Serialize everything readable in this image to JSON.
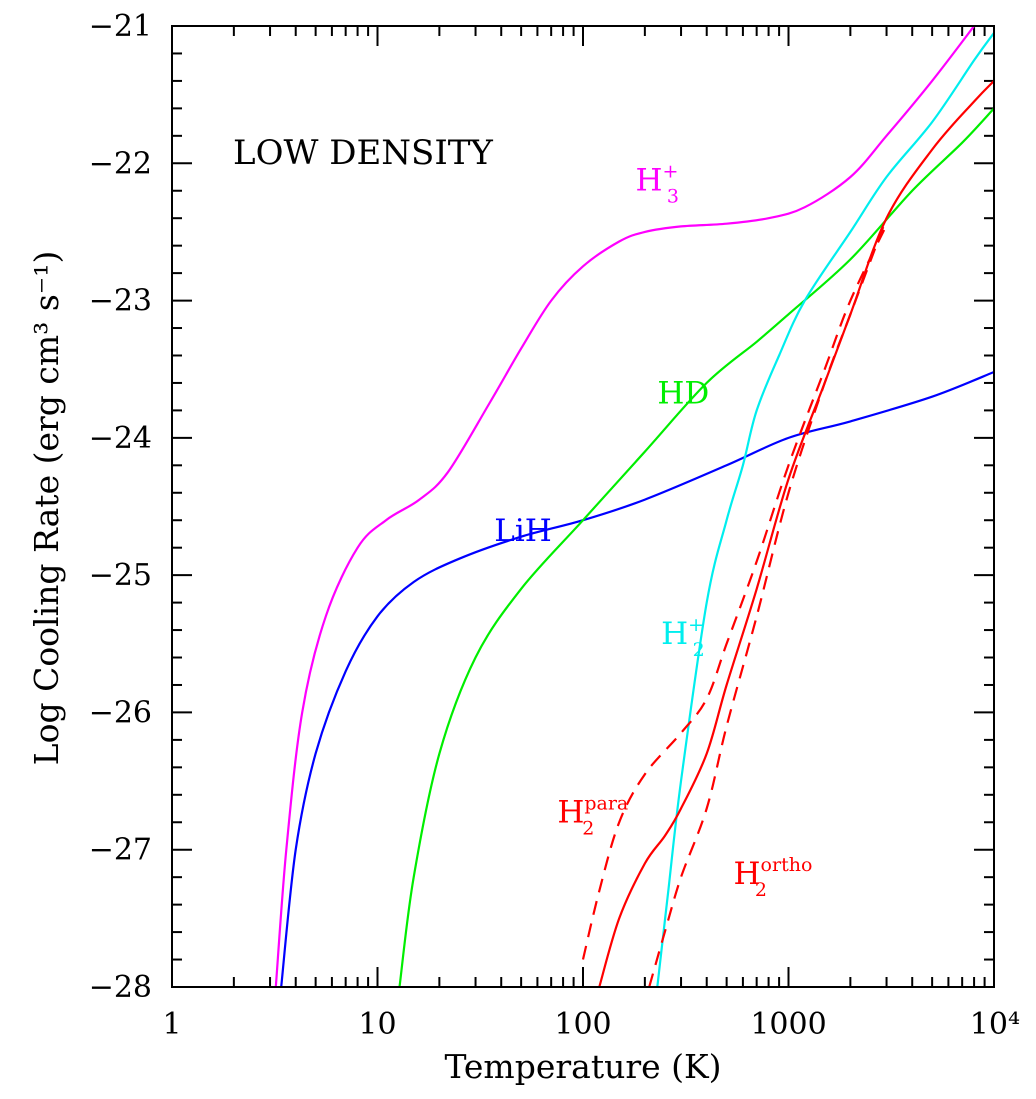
{
  "chart_data": {
    "type": "line",
    "title": "",
    "annotation": "LOW DENSITY",
    "xlabel": "Temperature (K)",
    "ylabel": "Log Cooling Rate (erg cm³ s⁻¹)",
    "xscale": "log",
    "xlim": [
      1,
      10000
    ],
    "ylim": [
      -28,
      -21
    ],
    "x_tick_labels": [
      {
        "value": 1,
        "label": "1"
      },
      {
        "value": 10,
        "label": "10"
      },
      {
        "value": 100,
        "label": "100"
      },
      {
        "value": 1000,
        "label": "1000"
      },
      {
        "value": 10000,
        "label": "10⁴"
      }
    ],
    "y_tick_labels": [
      {
        "value": -21,
        "label": "−21"
      },
      {
        "value": -22,
        "label": "−22"
      },
      {
        "value": -23,
        "label": "−23"
      },
      {
        "value": -24,
        "label": "−24"
      },
      {
        "value": -25,
        "label": "−25"
      },
      {
        "value": -26,
        "label": "−26"
      },
      {
        "value": -27,
        "label": "−27"
      },
      {
        "value": -28,
        "label": "−28"
      }
    ],
    "series": [
      {
        "name": "H3+",
        "label": {
          "base": "H",
          "sup": "+",
          "sub": "3"
        },
        "color": "#ff00ff",
        "dash": "solid",
        "label_anchor": {
          "x": 180,
          "y": -22.2
        },
        "points": [
          [
            3.2,
            -28.0
          ],
          [
            3.6,
            -27.0
          ],
          [
            4.3,
            -26.0
          ],
          [
            5.6,
            -25.3
          ],
          [
            8.0,
            -24.8
          ],
          [
            11,
            -24.6
          ],
          [
            16,
            -24.45
          ],
          [
            22,
            -24.25
          ],
          [
            35,
            -23.75
          ],
          [
            50,
            -23.35
          ],
          [
            70,
            -23.0
          ],
          [
            100,
            -22.75
          ],
          [
            150,
            -22.57
          ],
          [
            200,
            -22.5
          ],
          [
            300,
            -22.46
          ],
          [
            500,
            -22.44
          ],
          [
            800,
            -22.4
          ],
          [
            1200,
            -22.32
          ],
          [
            2000,
            -22.1
          ],
          [
            3000,
            -21.8
          ],
          [
            5000,
            -21.4
          ],
          [
            8000,
            -21.0
          ]
        ]
      },
      {
        "name": "LiH",
        "label": {
          "base": "LiH",
          "sup": "",
          "sub": ""
        },
        "color": "#0000ff",
        "dash": "solid",
        "label_anchor": {
          "x": 37,
          "y": -24.75
        },
        "points": [
          [
            3.4,
            -28.0
          ],
          [
            4.0,
            -27.0
          ],
          [
            5.0,
            -26.3
          ],
          [
            7.0,
            -25.7
          ],
          [
            10,
            -25.3
          ],
          [
            15,
            -25.05
          ],
          [
            25,
            -24.88
          ],
          [
            50,
            -24.72
          ],
          [
            100,
            -24.6
          ],
          [
            200,
            -24.45
          ],
          [
            500,
            -24.2
          ],
          [
            1000,
            -24.0
          ],
          [
            2000,
            -23.88
          ],
          [
            5000,
            -23.7
          ],
          [
            10000,
            -23.52
          ]
        ]
      },
      {
        "name": "HD",
        "label": {
          "base": "HD",
          "sup": "",
          "sub": ""
        },
        "color": "#00ee00",
        "dash": "solid",
        "label_anchor": {
          "x": 230,
          "y": -23.75
        },
        "points": [
          [
            12.8,
            -28.0
          ],
          [
            15,
            -27.2
          ],
          [
            20,
            -26.3
          ],
          [
            30,
            -25.6
          ],
          [
            50,
            -25.1
          ],
          [
            100,
            -24.6
          ],
          [
            200,
            -24.1
          ],
          [
            400,
            -23.6
          ],
          [
            700,
            -23.3
          ],
          [
            1000,
            -23.1
          ],
          [
            2000,
            -22.7
          ],
          [
            4000,
            -22.2
          ],
          [
            7000,
            -21.85
          ],
          [
            10000,
            -21.6
          ]
        ]
      },
      {
        "name": "H2+",
        "label": {
          "base": "H",
          "sup": "+",
          "sub": "2"
        },
        "color": "#00eeee",
        "dash": "solid",
        "label_anchor": {
          "x": 240,
          "y": -25.5
        },
        "points": [
          [
            230,
            -28.0
          ],
          [
            260,
            -27.3
          ],
          [
            300,
            -26.5
          ],
          [
            400,
            -25.2
          ],
          [
            500,
            -24.6
          ],
          [
            600,
            -24.2
          ],
          [
            700,
            -23.8
          ],
          [
            900,
            -23.4
          ],
          [
            1200,
            -23.0
          ],
          [
            2000,
            -22.5
          ],
          [
            3000,
            -22.1
          ],
          [
            5000,
            -21.7
          ],
          [
            8000,
            -21.25
          ],
          [
            10000,
            -21.05
          ]
        ]
      },
      {
        "name": "H2 ortho",
        "label": {
          "base": "H",
          "sup": "ortho",
          "sub": "2"
        },
        "color": "#ff0000",
        "dash": "solid",
        "label_anchor": {
          "x": 540,
          "y": -27.25
        },
        "points": [
          [
            120,
            -28.0
          ],
          [
            150,
            -27.5
          ],
          [
            200,
            -27.1
          ],
          [
            250,
            -26.9
          ],
          [
            300,
            -26.7
          ],
          [
            400,
            -26.3
          ],
          [
            500,
            -25.8
          ],
          [
            700,
            -25.1
          ],
          [
            1000,
            -24.3
          ],
          [
            1500,
            -23.6
          ],
          [
            2000,
            -23.1
          ],
          [
            3000,
            -22.4
          ],
          [
            5000,
            -21.9
          ],
          [
            8000,
            -21.55
          ],
          [
            10000,
            -21.4
          ]
        ]
      },
      {
        "name": "H2 para",
        "label": {
          "base": "H",
          "sup": "para",
          "sub": "2"
        },
        "color": "#ff0000",
        "dash": "dashed",
        "label_anchor": {
          "x": 75,
          "y": -26.8
        },
        "points": [
          [
            100,
            -27.8
          ],
          [
            120,
            -27.3
          ],
          [
            150,
            -26.8
          ],
          [
            200,
            -26.45
          ],
          [
            300,
            -26.15
          ],
          [
            400,
            -25.9
          ],
          [
            500,
            -25.5
          ],
          [
            700,
            -24.9
          ],
          [
            1000,
            -24.2
          ],
          [
            1500,
            -23.5
          ],
          [
            2000,
            -23.0
          ],
          [
            3000,
            -22.45
          ]
        ]
      },
      {
        "name": "H2 ortho (dashed)",
        "label": null,
        "color": "#ff0000",
        "dash": "dashed",
        "label_anchor": null,
        "points": [
          [
            210,
            -28.0
          ],
          [
            250,
            -27.6
          ],
          [
            300,
            -27.2
          ],
          [
            400,
            -26.7
          ],
          [
            500,
            -26.1
          ],
          [
            700,
            -25.3
          ],
          [
            1000,
            -24.4
          ],
          [
            1500,
            -23.6
          ],
          [
            2000,
            -23.1
          ],
          [
            3000,
            -22.4
          ]
        ]
      }
    ]
  }
}
